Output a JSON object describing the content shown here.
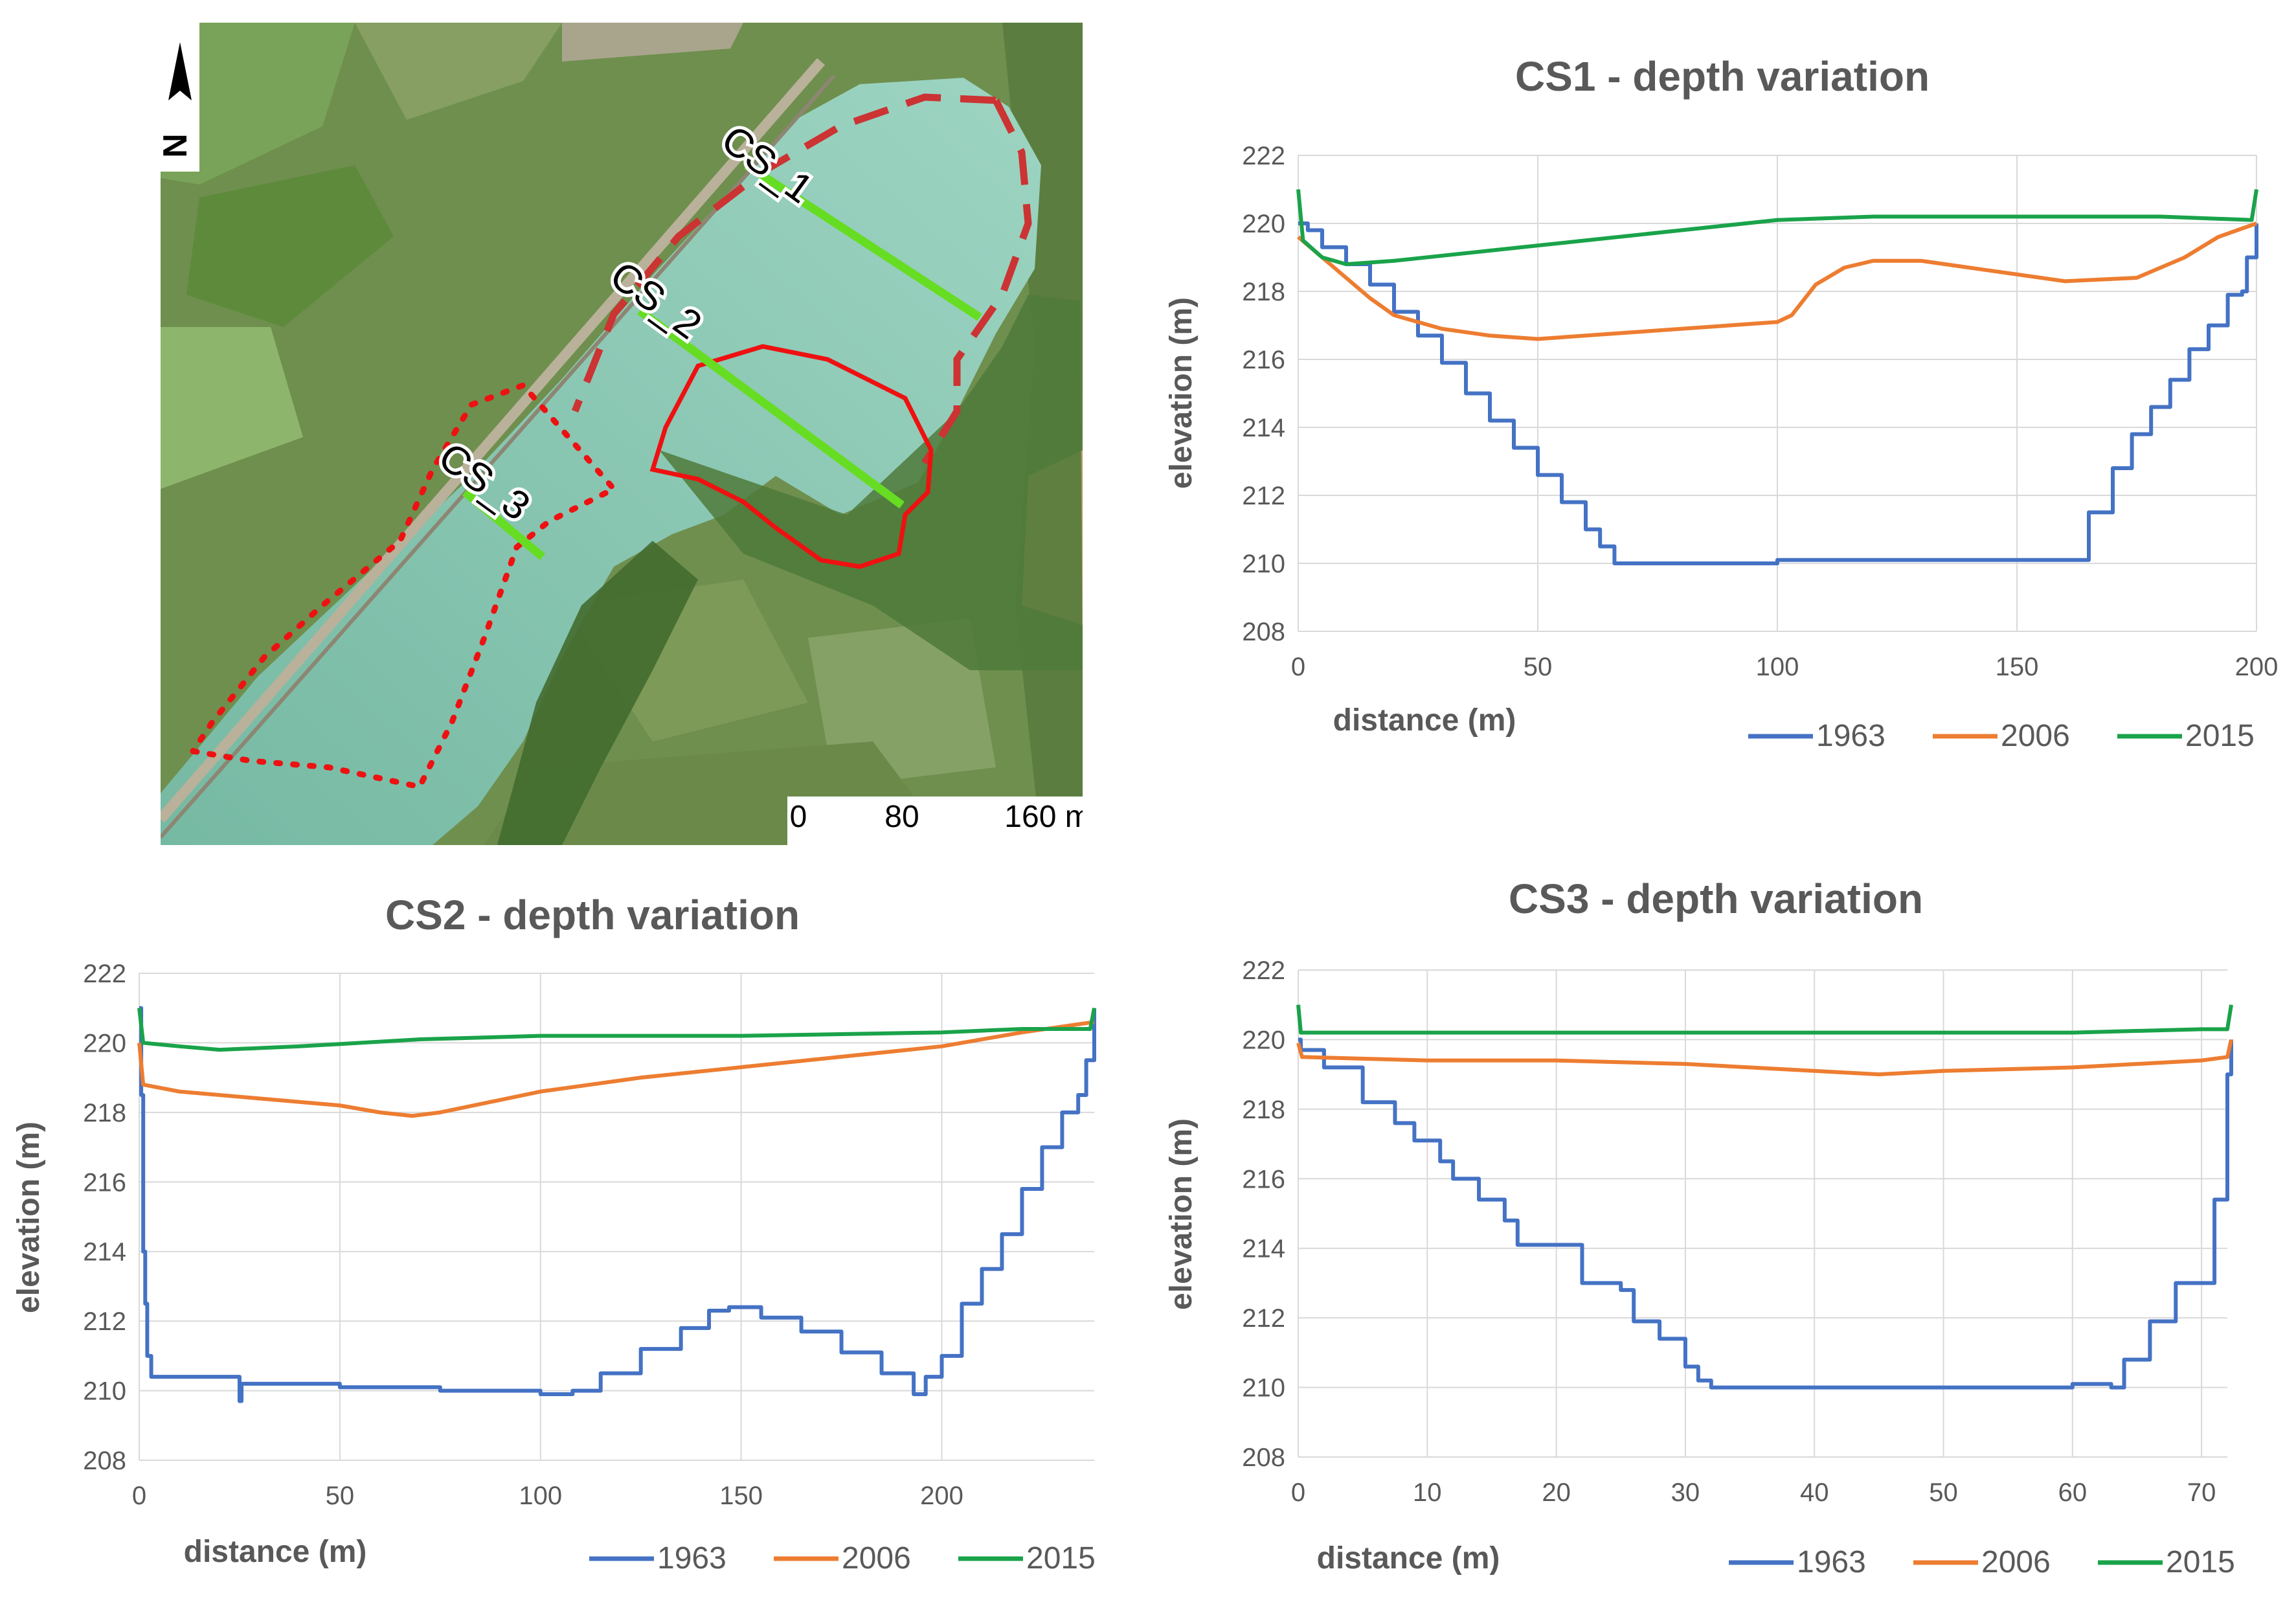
{
  "map": {
    "north_label": "N",
    "scale_labels": [
      "0",
      "80",
      "160 m"
    ],
    "sections": [
      {
        "label": "CS_1"
      },
      {
        "label": "CS_2"
      },
      {
        "label": "CS_3"
      }
    ],
    "colors": {
      "section_line": "#66dd22",
      "boundary": "#ee1111",
      "water": "#8ccab5",
      "vegetation": "#4f7a3a"
    }
  },
  "legend": {
    "series": [
      "1963",
      "2006",
      "2015"
    ],
    "colors": [
      "#4472c4",
      "#ed7d31",
      "#1aa34a"
    ]
  },
  "chart_data": [
    {
      "type": "line",
      "title": "CS1 - depth variation",
      "xlabel": "distance (m)",
      "ylabel": "elevation (m)",
      "xlim": [
        0,
        200
      ],
      "ylim": [
        208,
        222
      ],
      "xticks": [
        0,
        50,
        100,
        150,
        200
      ],
      "yticks": [
        208,
        210,
        212,
        214,
        216,
        218,
        220,
        222
      ],
      "grid": true,
      "legend_position": "bottom-right",
      "series": [
        {
          "name": "1963",
          "stepped": true,
          "points": [
            [
              0,
              220.0
            ],
            [
              2,
              219.8
            ],
            [
              5,
              219.3
            ],
            [
              10,
              218.8
            ],
            [
              15,
              218.2
            ],
            [
              20,
              217.4
            ],
            [
              25,
              216.7
            ],
            [
              30,
              215.9
            ],
            [
              35,
              215.0
            ],
            [
              40,
              214.2
            ],
            [
              45,
              213.4
            ],
            [
              50,
              212.6
            ],
            [
              55,
              211.8
            ],
            [
              60,
              211.0
            ],
            [
              63,
              210.5
            ],
            [
              66,
              210.0
            ],
            [
              100,
              210.1
            ],
            [
              162,
              210.1
            ],
            [
              165,
              211.5
            ],
            [
              170,
              212.8
            ],
            [
              174,
              213.8
            ],
            [
              178,
              214.6
            ],
            [
              182,
              215.4
            ],
            [
              186,
              216.3
            ],
            [
              190,
              217.0
            ],
            [
              194,
              217.9
            ],
            [
              197,
              218.0
            ],
            [
              198,
              219.0
            ],
            [
              200,
              220.0
            ]
          ]
        },
        {
          "name": "2006",
          "points": [
            [
              0,
              219.6
            ],
            [
              5,
              219.0
            ],
            [
              10,
              218.4
            ],
            [
              15,
              217.8
            ],
            [
              20,
              217.3
            ],
            [
              30,
              216.9
            ],
            [
              40,
              216.7
            ],
            [
              50,
              216.6
            ],
            [
              70,
              216.8
            ],
            [
              90,
              217.0
            ],
            [
              100,
              217.1
            ],
            [
              103,
              217.3
            ],
            [
              108,
              218.2
            ],
            [
              114,
              218.7
            ],
            [
              120,
              218.9
            ],
            [
              130,
              218.9
            ],
            [
              140,
              218.7
            ],
            [
              150,
              218.5
            ],
            [
              160,
              218.3
            ],
            [
              175,
              218.4
            ],
            [
              185,
              219.0
            ],
            [
              192,
              219.6
            ],
            [
              200,
              220.0
            ]
          ]
        },
        {
          "name": "2015",
          "points": [
            [
              0,
              221.0
            ],
            [
              1,
              219.5
            ],
            [
              5,
              219.0
            ],
            [
              10,
              218.8
            ],
            [
              20,
              218.9
            ],
            [
              40,
              219.2
            ],
            [
              60,
              219.5
            ],
            [
              80,
              219.8
            ],
            [
              100,
              220.1
            ],
            [
              120,
              220.2
            ],
            [
              140,
              220.2
            ],
            [
              160,
              220.2
            ],
            [
              180,
              220.2
            ],
            [
              199,
              220.1
            ],
            [
              200,
              221.0
            ]
          ]
        }
      ]
    },
    {
      "type": "line",
      "title": "CS2 - depth variation",
      "xlabel": "distance (m)",
      "ylabel": "elevation (m)",
      "xlim": [
        0,
        238
      ],
      "ylim": [
        208,
        222
      ],
      "xticks": [
        0,
        50,
        100,
        150,
        200
      ],
      "yticks": [
        208,
        210,
        212,
        214,
        216,
        218,
        220,
        222
      ],
      "grid": true,
      "legend_position": "bottom-right",
      "series": [
        {
          "name": "1963",
          "stepped": true,
          "points": [
            [
              0,
              221.0
            ],
            [
              0.5,
              218.5
            ],
            [
              1,
              214.0
            ],
            [
              1.5,
              212.5
            ],
            [
              2,
              211.0
            ],
            [
              3,
              210.4
            ],
            [
              15,
              210.4
            ],
            [
              24,
              210.4
            ],
            [
              25,
              209.7
            ],
            [
              25.5,
              210.2
            ],
            [
              50,
              210.1
            ],
            [
              75,
              210.0
            ],
            [
              100,
              209.9
            ],
            [
              108,
              210.0
            ],
            [
              115,
              210.5
            ],
            [
              125,
              211.2
            ],
            [
              135,
              211.8
            ],
            [
              142,
              212.3
            ],
            [
              147,
              212.4
            ],
            [
              155,
              212.1
            ],
            [
              165,
              211.7
            ],
            [
              175,
              211.1
            ],
            [
              185,
              210.5
            ],
            [
              193,
              209.9
            ],
            [
              196,
              210.4
            ],
            [
              200,
              211.0
            ],
            [
              205,
              212.5
            ],
            [
              210,
              213.5
            ],
            [
              215,
              214.5
            ],
            [
              220,
              215.8
            ],
            [
              225,
              217.0
            ],
            [
              230,
              218.0
            ],
            [
              234,
              218.5
            ],
            [
              236,
              219.5
            ],
            [
              238,
              221.0
            ]
          ]
        },
        {
          "name": "2006",
          "points": [
            [
              0,
              220.0
            ],
            [
              1,
              218.8
            ],
            [
              10,
              218.6
            ],
            [
              30,
              218.4
            ],
            [
              50,
              218.2
            ],
            [
              60,
              218.0
            ],
            [
              68,
              217.9
            ],
            [
              75,
              218.0
            ],
            [
              100,
              218.6
            ],
            [
              125,
              219.0
            ],
            [
              150,
              219.3
            ],
            [
              175,
              219.6
            ],
            [
              200,
              219.9
            ],
            [
              220,
              220.3
            ],
            [
              238,
              220.6
            ]
          ]
        },
        {
          "name": "2015",
          "points": [
            [
              0,
              221.0
            ],
            [
              1,
              220.0
            ],
            [
              10,
              219.9
            ],
            [
              20,
              219.8
            ],
            [
              40,
              219.9
            ],
            [
              70,
              220.1
            ],
            [
              100,
              220.2
            ],
            [
              150,
              220.2
            ],
            [
              200,
              220.3
            ],
            [
              220,
              220.4
            ],
            [
              237,
              220.4
            ],
            [
              238,
              221.0
            ]
          ]
        }
      ]
    },
    {
      "type": "line",
      "title": "CS3 - depth variation",
      "xlabel": "distance (m)",
      "ylabel": "elevation (m)",
      "xlim": [
        0,
        72
      ],
      "ylim": [
        208,
        222
      ],
      "xticks": [
        0,
        10,
        20,
        30,
        40,
        50,
        60,
        70
      ],
      "yticks": [
        208,
        210,
        212,
        214,
        216,
        218,
        220,
        222
      ],
      "grid": true,
      "legend_position": "bottom-right",
      "series": [
        {
          "name": "1963",
          "stepped": true,
          "points": [
            [
              0,
              220.0
            ],
            [
              0.2,
              219.7
            ],
            [
              1,
              219.7
            ],
            [
              2,
              219.2
            ],
            [
              4,
              219.2
            ],
            [
              5,
              218.2
            ],
            [
              7,
              218.2
            ],
            [
              7.5,
              217.6
            ],
            [
              9,
              217.1
            ],
            [
              11,
              216.5
            ],
            [
              12,
              216.0
            ],
            [
              14,
              215.4
            ],
            [
              16,
              214.8
            ],
            [
              17,
              214.1
            ],
            [
              20,
              214.1
            ],
            [
              22,
              213.0
            ],
            [
              25,
              212.8
            ],
            [
              26,
              211.9
            ],
            [
              28,
              211.4
            ],
            [
              30,
              210.6
            ],
            [
              31,
              210.2
            ],
            [
              32,
              210.0
            ],
            [
              50,
              210.0
            ],
            [
              60,
              210.1
            ],
            [
              63,
              210.0
            ],
            [
              64,
              210.8
            ],
            [
              66,
              211.9
            ],
            [
              68,
              213.0
            ],
            [
              70,
              213.0
            ],
            [
              71,
              215.4
            ],
            [
              72,
              219.0
            ],
            [
              72.3,
              220.0
            ]
          ]
        },
        {
          "name": "2006",
          "points": [
            [
              0,
              219.9
            ],
            [
              0.3,
              219.5
            ],
            [
              10,
              219.4
            ],
            [
              20,
              219.4
            ],
            [
              30,
              219.3
            ],
            [
              40,
              219.1
            ],
            [
              45,
              219.0
            ],
            [
              50,
              219.1
            ],
            [
              60,
              219.2
            ],
            [
              70,
              219.4
            ],
            [
              72,
              219.5
            ],
            [
              72.3,
              220.0
            ]
          ]
        },
        {
          "name": "2015",
          "points": [
            [
              0,
              221.0
            ],
            [
              0.2,
              220.2
            ],
            [
              10,
              220.2
            ],
            [
              30,
              220.2
            ],
            [
              50,
              220.2
            ],
            [
              60,
              220.2
            ],
            [
              70,
              220.3
            ],
            [
              72,
              220.3
            ],
            [
              72.3,
              221.0
            ]
          ]
        }
      ]
    }
  ]
}
